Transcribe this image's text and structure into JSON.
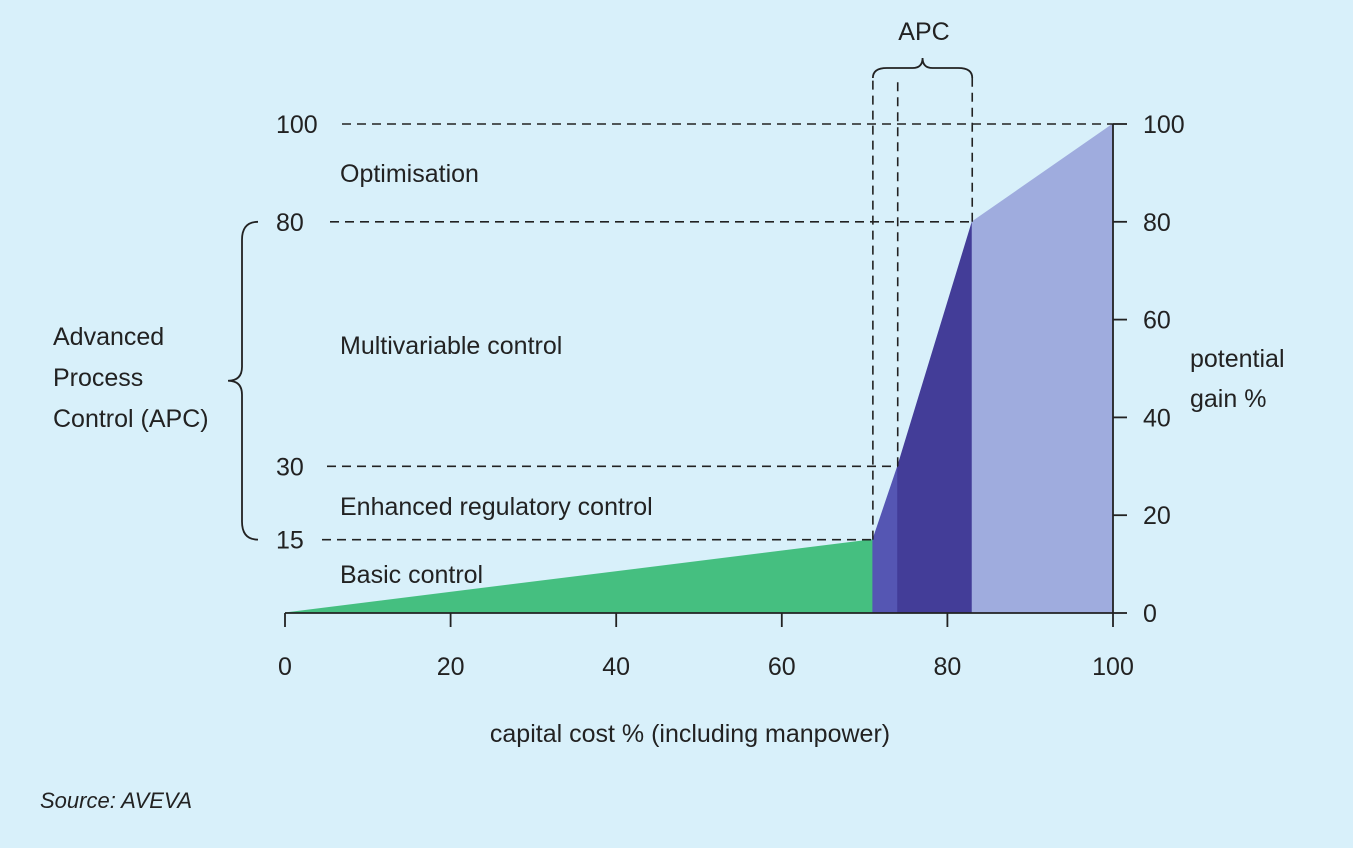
{
  "source": "Source: AVEVA",
  "chart_data": {
    "type": "area",
    "x_label": "capital cost % (including manpower)",
    "y_right_label": [
      "potential",
      "gain %"
    ],
    "x_ticks": [
      0,
      20,
      40,
      60,
      80,
      100
    ],
    "y_right_ticks": [
      0,
      20,
      40,
      60,
      80,
      100
    ],
    "y_left_ticks": [
      15,
      30,
      80,
      100
    ],
    "xlim": [
      0,
      100
    ],
    "ylim": [
      0,
      100
    ],
    "segments": [
      {
        "name": "Basic control",
        "color": "#45bf80",
        "points": [
          [
            0,
            0
          ],
          [
            71,
            15
          ]
        ]
      },
      {
        "name": "Enhanced regulatory control",
        "color": "#5556b3",
        "points": [
          [
            71,
            15
          ],
          [
            74,
            30
          ]
        ]
      },
      {
        "name": "Multivariable control",
        "color": "#433d98",
        "points": [
          [
            74,
            30
          ],
          [
            83,
            80
          ]
        ]
      },
      {
        "name": "Optimisation",
        "color": "#9facde",
        "points": [
          [
            83,
            80
          ],
          [
            100,
            100
          ]
        ]
      }
    ],
    "bands": [
      {
        "label": "Optimisation",
        "y_from": 80,
        "y_to": 100
      },
      {
        "label": "Multivariable control",
        "y_from": 30,
        "y_to": 80
      },
      {
        "label": "Enhanced regulatory control",
        "y_from": 15,
        "y_to": 30
      },
      {
        "label": "Basic control",
        "y_from": 0,
        "y_to": 15
      }
    ],
    "left_bracket": {
      "label": [
        "Advanced",
        "Process",
        "Control (APC)"
      ],
      "y_from": 15,
      "y_to": 80
    },
    "top_bracket": {
      "label": "APC",
      "x_from": 71,
      "x_to": 83
    },
    "grid": false
  }
}
